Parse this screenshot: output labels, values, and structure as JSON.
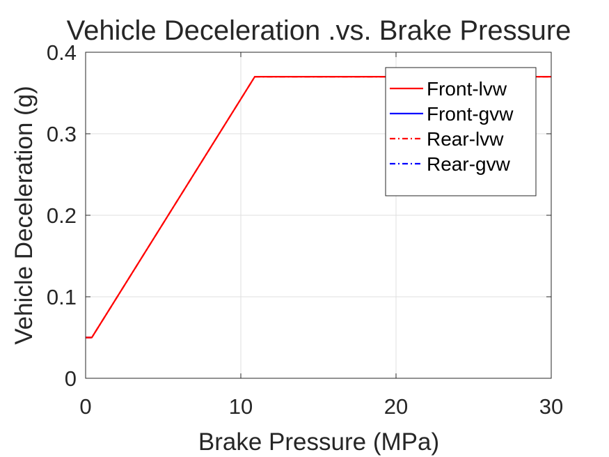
{
  "chart_data": {
    "type": "line",
    "title": "Vehicle Deceleration .vs. Brake Pressure",
    "xlabel": "Brake Pressure (MPa)",
    "ylabel": "Vehicle Deceleration (g)",
    "xlim": [
      0,
      30
    ],
    "ylim": [
      0,
      0.4
    ],
    "xticks": [
      0,
      10,
      20,
      30
    ],
    "yticks": [
      0,
      0.1,
      0.2,
      0.3,
      0.4
    ],
    "xtick_labels": [
      "0",
      "10",
      "20",
      "30"
    ],
    "ytick_labels": [
      "0",
      "0.1",
      "0.2",
      "0.3",
      "0.4"
    ],
    "grid": true,
    "legend_position": "top-right",
    "series": [
      {
        "name": "Front-lvw",
        "color": "#ff0000",
        "style": "solid",
        "x": [
          0,
          0.4,
          10.9,
          30
        ],
        "y": [
          0.05,
          0.05,
          0.37,
          0.37
        ]
      },
      {
        "name": "Front-gvw",
        "color": "#0000ff",
        "style": "solid",
        "x": [
          0,
          0.4
        ],
        "y": [
          0.05,
          0.05
        ]
      },
      {
        "name": "Rear-lvw",
        "color": "#ff0000",
        "style": "dashdot",
        "x": [
          0,
          0.4,
          10.9,
          30
        ],
        "y": [
          0.05,
          0.05,
          0.37,
          0.37
        ]
      },
      {
        "name": "Rear-gvw",
        "color": "#0000ff",
        "style": "dashdot",
        "x": [
          0,
          0.4
        ],
        "y": [
          0.05,
          0.05
        ]
      }
    ],
    "draw_order": [
      1,
      3,
      0,
      2
    ]
  }
}
